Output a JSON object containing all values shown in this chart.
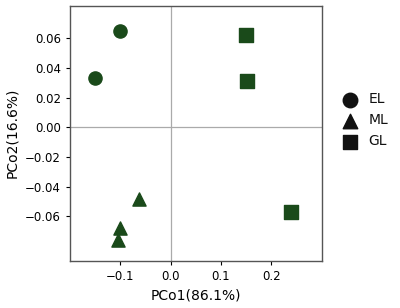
{
  "EL": {
    "x": [
      -0.15,
      -0.1
    ],
    "y": [
      0.033,
      0.065
    ],
    "marker": "o",
    "label": "EL"
  },
  "ML": {
    "x": [
      -0.105,
      -0.1,
      -0.063
    ],
    "y": [
      -0.076,
      -0.068,
      -0.048
    ],
    "marker": "^",
    "label": "ML"
  },
  "GL": {
    "x": [
      0.15,
      0.152,
      0.24
    ],
    "y": [
      0.062,
      0.031,
      -0.057
    ],
    "marker": "s",
    "label": "GL"
  },
  "data_color": "#1a4a1a",
  "legend_marker_color": "#111111",
  "xlabel": "PCo1(86.1%)",
  "ylabel": "PCo2(16.6%)",
  "xlim": [
    -0.2,
    0.3
  ],
  "ylim": [
    -0.09,
    0.082
  ],
  "xticks": [
    -0.1,
    0.0,
    0.1,
    0.2
  ],
  "yticks": [
    -0.06,
    -0.04,
    -0.02,
    0.0,
    0.02,
    0.04,
    0.06
  ],
  "marker_size": 90,
  "axline_color": "#aaaaaa",
  "spine_color": "#555555",
  "background_color": "#ffffff",
  "legend_fontsize": 10,
  "axis_label_fontsize": 10,
  "tick_fontsize": 8.5
}
